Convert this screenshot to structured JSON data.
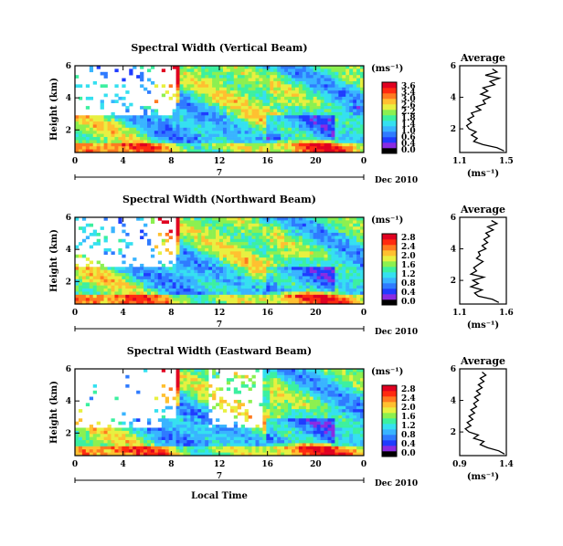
{
  "colorbar": {
    "colors": [
      "#000000",
      "#8a2be2",
      "#1f3cff",
      "#2f7bff",
      "#39b4ff",
      "#35e0f0",
      "#3cf0a0",
      "#8cf050",
      "#e8f040",
      "#ffc030",
      "#ff7a20",
      "#ff2a10",
      "#e00020"
    ],
    "unit": "(ms⁻¹)"
  },
  "shared_axes": {
    "time_ticks": [
      "0",
      "4",
      "8",
      "12",
      "16",
      "20",
      "0"
    ],
    "date_tick": "7",
    "date_label": "Dec 2010",
    "xlabel": "Local Time",
    "ylabel": "Height (km)",
    "height_ticks": [
      "6",
      "4",
      "2"
    ],
    "avg_height_ticks": [
      "6",
      "4",
      "2"
    ]
  },
  "chart_data": [
    {
      "type": "heatmap",
      "title": "Spectral Width (Vertical Beam)",
      "x_range": [
        0,
        24
      ],
      "y_range": [
        0.5,
        6
      ],
      "colorbar_ticks": [
        "3.6",
        "3.4",
        "3.0",
        "2.6",
        "2.2",
        "1.8",
        "1.4",
        "1.0",
        "0.6",
        "0.4",
        "0.0"
      ],
      "average": {
        "title": "Average",
        "xlabel": "(ms⁻¹)",
        "xlim": [
          1.1,
          1.5
        ],
        "xticks": [
          "1.1",
          "1.5"
        ],
        "height": [
          0.6,
          0.8,
          1.0,
          1.2,
          1.4,
          1.6,
          1.8,
          2.0,
          2.2,
          2.4,
          2.6,
          2.8,
          3.0,
          3.2,
          3.4,
          3.6,
          3.8,
          4.0,
          4.2,
          4.4,
          4.6,
          4.8,
          5.0,
          5.2,
          5.4,
          5.6,
          5.8
        ],
        "value": [
          1.48,
          1.42,
          1.3,
          1.22,
          1.25,
          1.2,
          1.24,
          1.18,
          1.16,
          1.2,
          1.17,
          1.22,
          1.2,
          1.28,
          1.24,
          1.32,
          1.3,
          1.36,
          1.28,
          1.34,
          1.3,
          1.4,
          1.36,
          1.44,
          1.32,
          1.42,
          1.38
        ]
      }
    },
    {
      "type": "heatmap",
      "title": "Spectral Width (Northward Beam)",
      "x_range": [
        0,
        24
      ],
      "y_range": [
        0.5,
        6
      ],
      "colorbar_ticks": [
        "2.8",
        "2.4",
        "2.0",
        "1.6",
        "1.2",
        "0.8",
        "0.4",
        "0.0"
      ],
      "average": {
        "title": "Average",
        "xlabel": "(ms⁻¹)",
        "xlim": [
          1.1,
          1.6
        ],
        "xticks": [
          "1.1",
          "1.6"
        ],
        "height": [
          0.6,
          0.8,
          1.0,
          1.2,
          1.4,
          1.6,
          1.8,
          2.0,
          2.2,
          2.4,
          2.6,
          2.8,
          3.0,
          3.2,
          3.4,
          3.6,
          3.8,
          4.0,
          4.2,
          4.4,
          4.6,
          4.8,
          5.0,
          5.2,
          5.4,
          5.6,
          5.8
        ],
        "value": [
          1.52,
          1.45,
          1.3,
          1.26,
          1.34,
          1.22,
          1.3,
          1.24,
          1.36,
          1.22,
          1.28,
          1.25,
          1.3,
          1.35,
          1.28,
          1.32,
          1.3,
          1.38,
          1.34,
          1.4,
          1.36,
          1.42,
          1.38,
          1.46,
          1.4,
          1.5,
          1.44
        ]
      }
    },
    {
      "type": "heatmap",
      "title": "Spectral Width (Eastward Beam)",
      "x_range": [
        0,
        24
      ],
      "y_range": [
        0.5,
        6
      ],
      "colorbar_ticks": [
        "2.8",
        "2.4",
        "2.0",
        "1.6",
        "1.2",
        "0.8",
        "0.4",
        "0.0"
      ],
      "average": {
        "title": "Average",
        "xlabel": "(ms⁻¹)",
        "xlim": [
          0.9,
          1.4
        ],
        "xticks": [
          "0.9",
          "1.4"
        ],
        "height": [
          0.6,
          0.8,
          1.0,
          1.2,
          1.4,
          1.6,
          1.8,
          2.0,
          2.2,
          2.4,
          2.6,
          2.8,
          3.0,
          3.2,
          3.4,
          3.6,
          3.8,
          4.0,
          4.2,
          4.4,
          4.6,
          4.8,
          5.0,
          5.2,
          5.4,
          5.6,
          5.8
        ],
        "value": [
          1.38,
          1.32,
          1.2,
          1.12,
          1.16,
          1.05,
          1.1,
          1.0,
          0.96,
          1.02,
          0.98,
          1.04,
          1.0,
          1.06,
          1.02,
          1.08,
          1.05,
          1.1,
          1.06,
          1.12,
          1.08,
          1.14,
          1.1,
          1.16,
          1.12,
          1.18,
          1.14
        ]
      }
    }
  ]
}
